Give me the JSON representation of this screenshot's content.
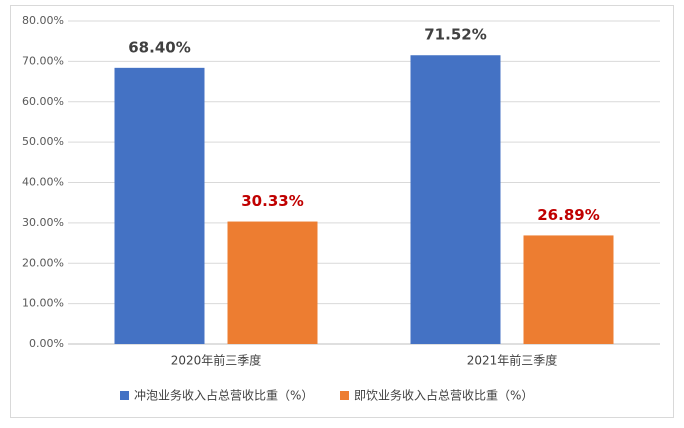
{
  "chart_data": {
    "type": "bar",
    "categories": [
      "2020年前三季度",
      "2021年前三季度"
    ],
    "series": [
      {
        "name": "冲泡业务收入占总营收比重（%）",
        "color": "#4472c4",
        "label_color": "#404040",
        "values": [
          68.4,
          71.52
        ],
        "value_labels": [
          "68.40%",
          "71.52%"
        ]
      },
      {
        "name": "即饮业务收入占总营收比重（%）",
        "color": "#ed7d31",
        "label_color": "#c00000",
        "values": [
          30.33,
          26.89
        ],
        "value_labels": [
          "30.33%",
          "26.89%"
        ]
      }
    ],
    "ylim": [
      0,
      80
    ],
    "yticks": [
      {
        "value": 0,
        "label": "0.00%"
      },
      {
        "value": 10,
        "label": "10.00%"
      },
      {
        "value": 20,
        "label": "20.00%"
      },
      {
        "value": 30,
        "label": "30.00%"
      },
      {
        "value": 40,
        "label": "40.00%"
      },
      {
        "value": 50,
        "label": "50.00%"
      },
      {
        "value": 60,
        "label": "60.00%"
      },
      {
        "value": 70,
        "label": "70.00%"
      },
      {
        "value": 80,
        "label": "80.00%"
      }
    ],
    "grid": true,
    "legend": "bottom"
  }
}
